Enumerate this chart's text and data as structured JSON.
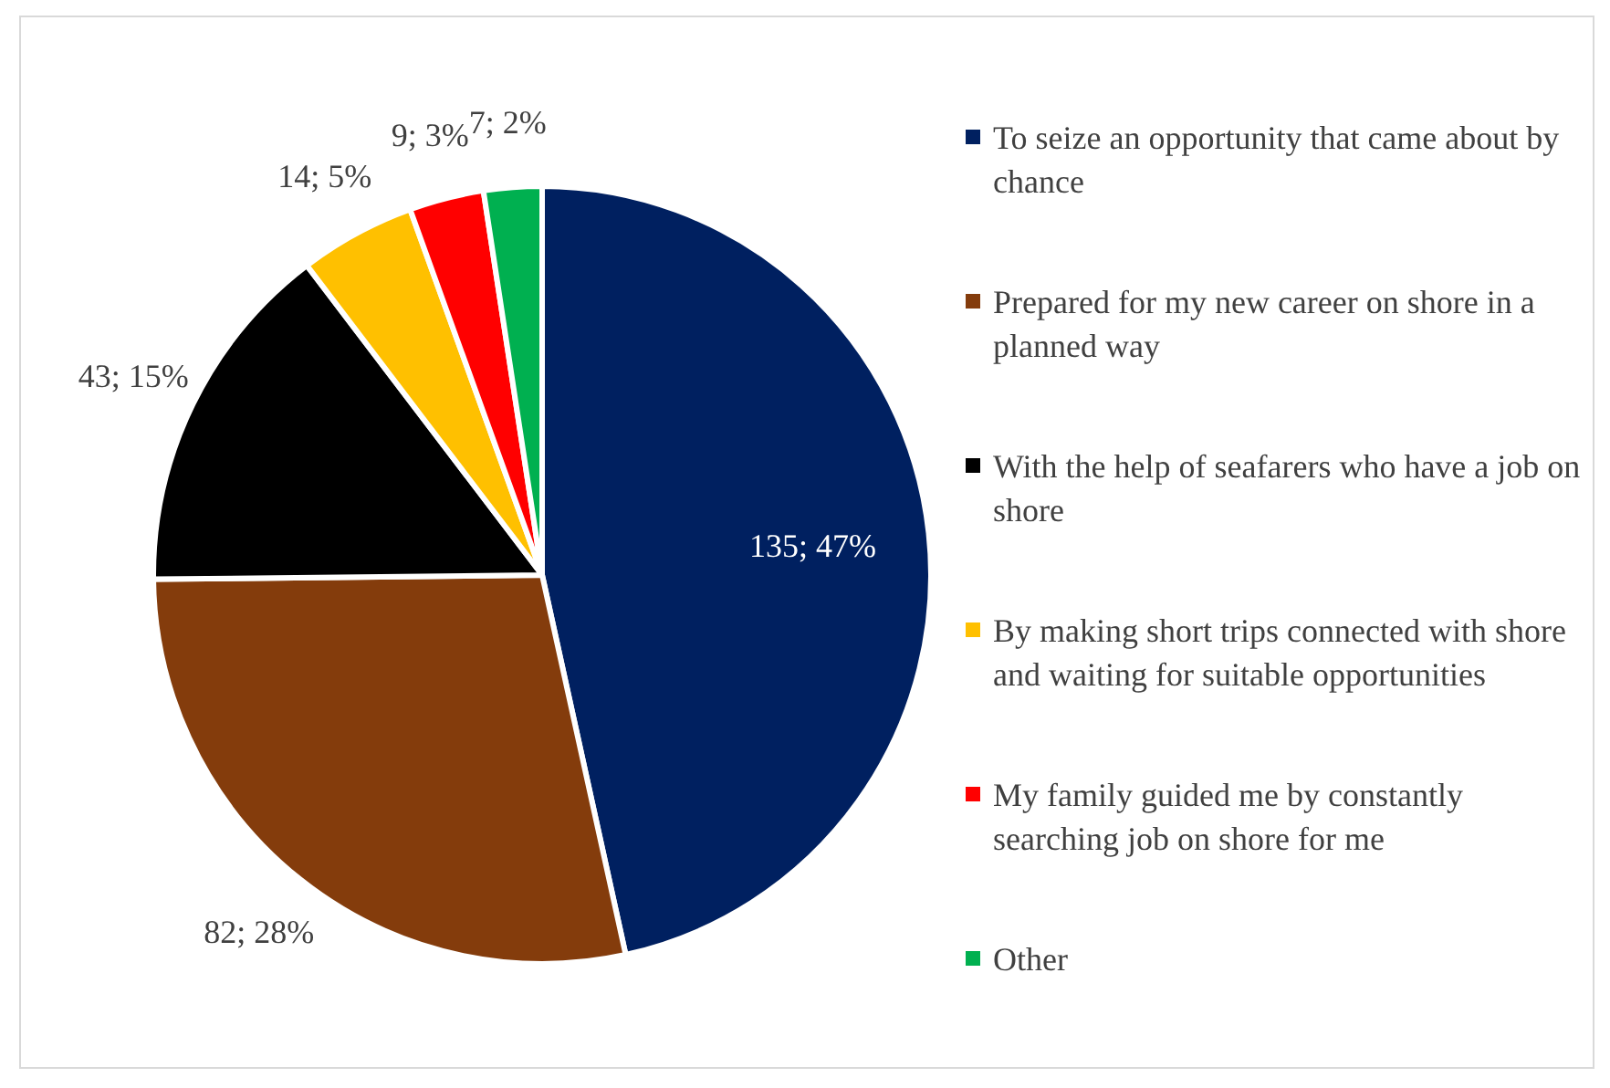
{
  "chart_data": {
    "type": "pie",
    "categories": [
      "To seize an opportunity that came about by chance",
      "Prepared for my new career on shore in a planned way",
      "With the help of seafarers who have a job on shore",
      "By making short trips connected with shore and waiting for suitable opportunities",
      "My family guided me by constantly searching job on shore for me",
      "Other"
    ],
    "values": [
      135,
      82,
      43,
      14,
      9,
      7
    ],
    "colors": [
      "#002060",
      "#843c0c",
      "#000000",
      "#ffc000",
      "#ff0000",
      "#00b050"
    ],
    "value_labels": [
      "135; 47%",
      "82; 28%",
      "43; 15%",
      "14; 5%",
      "9; 3%",
      "7; 2%"
    ],
    "legend": "right"
  }
}
